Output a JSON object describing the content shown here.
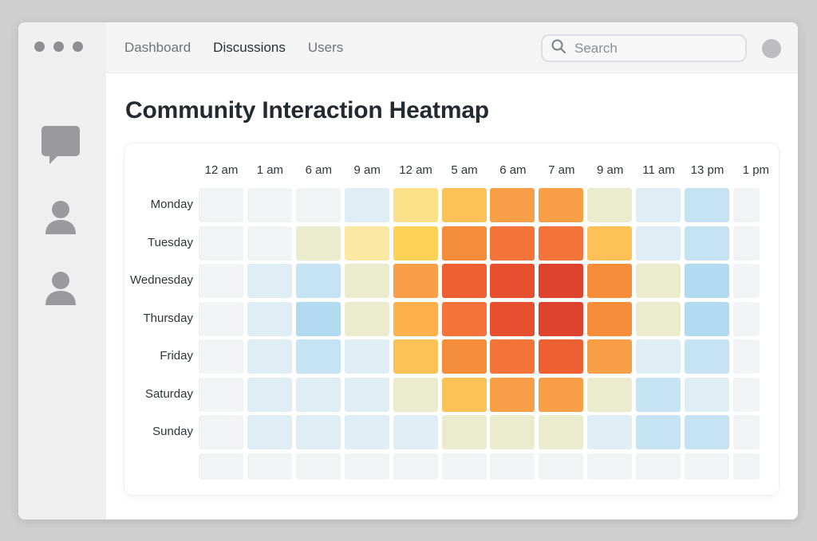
{
  "nav": {
    "items": [
      {
        "label": "Dashboard",
        "active": false
      },
      {
        "label": "Discussions",
        "active": true
      },
      {
        "label": "Users",
        "active": false
      }
    ]
  },
  "search": {
    "placeholder": "Search",
    "value": ""
  },
  "sidebar": {
    "icons": [
      "chat-icon",
      "user-icon",
      "user-icon"
    ]
  },
  "page": {
    "title": "Community Interaction Heatmap"
  },
  "heatmap": {
    "hours": [
      "12 am",
      "1 am",
      "6 am",
      "9 am",
      "12 am",
      "5 am",
      "6 am",
      "7 am",
      "9 am",
      "11 am",
      "13 pm",
      "1 pm"
    ],
    "days": [
      "Monday",
      "Tuesday",
      "Wednesday",
      "Thursday",
      "Friday",
      "Saturday",
      "Sunday"
    ],
    "colors": {
      "empty": "#f2f3f5",
      "l1": "#dfeef5",
      "l2": "#c6e3f3",
      "l3": "#b1daf0",
      "y1": "#eaeccd",
      "y2": "#fbe9a3",
      "y3": "#fbe189",
      "y4": "#fdd357",
      "o1": "#fcc157",
      "o2": "#fcb14d",
      "o3": "#f99f47",
      "o4": "#f58d3b",
      "r1": "#f4743a",
      "r2": "#ee5f32",
      "r3": "#e6502f",
      "r4": "#de4330"
    },
    "rows": [
      [
        "empty",
        "empty",
        "empty",
        "l1",
        "y3",
        "o1",
        "o3",
        "o3",
        "y1",
        "l1",
        "l2",
        "empty"
      ],
      [
        "empty",
        "empty",
        "y1",
        "y2",
        "y4",
        "o4",
        "r1",
        "r1",
        "o1",
        "l1",
        "l2",
        "empty"
      ],
      [
        "empty",
        "l1",
        "l2",
        "y1",
        "o3",
        "r2",
        "r3",
        "r4",
        "o4",
        "y1",
        "l3",
        "empty"
      ],
      [
        "empty",
        "l1",
        "l3",
        "y1",
        "o2",
        "r1",
        "r3",
        "r4",
        "o4",
        "y1",
        "l3",
        "empty"
      ],
      [
        "empty",
        "l1",
        "l2",
        "l1",
        "o1",
        "o4",
        "r1",
        "r2",
        "o3",
        "l1",
        "l2",
        "empty"
      ],
      [
        "empty",
        "l1",
        "l1",
        "l1",
        "y1",
        "o1",
        "o3",
        "o3",
        "y1",
        "l2",
        "l1",
        "empty"
      ],
      [
        "empty",
        "l1",
        "l1",
        "l1",
        "l1",
        "y1",
        "y1",
        "y1",
        "l1",
        "l2",
        "l2",
        "empty"
      ],
      [
        "empty",
        "empty",
        "empty",
        "empty",
        "empty",
        "empty",
        "empty",
        "empty",
        "empty",
        "empty",
        "empty",
        "empty"
      ]
    ]
  }
}
